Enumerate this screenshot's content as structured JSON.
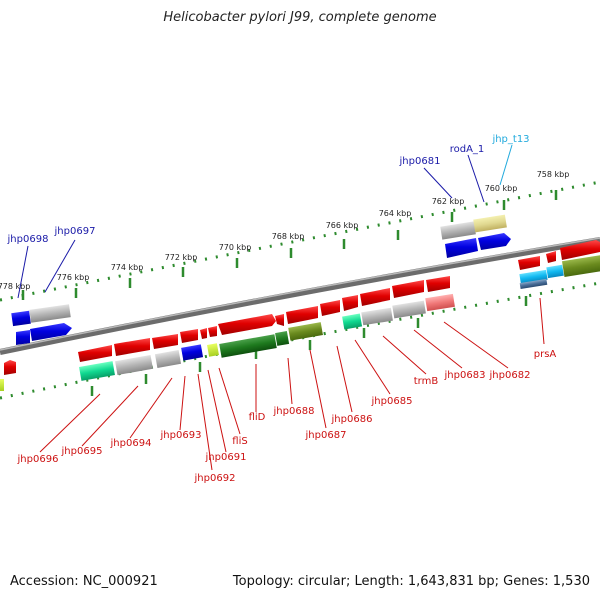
{
  "title": "Helicobacter pylori J99, complete genome",
  "footer": {
    "accession": "Accession: NC_000921",
    "topology": "Topology: circular; Length: 1,643,831 bp; Genes: 1,530"
  },
  "colors": {
    "backbone": "#7a7a7a",
    "tick": "#2e8b2e",
    "forward_label": "#1a1aa8",
    "trna_label": "#22aadd",
    "reverse_label": "#cc1111"
  },
  "scale_labels": [
    "778 kbp",
    "776 kbp",
    "774 kbp",
    "772 kbp",
    "770 kbp",
    "768 kbp",
    "766 kbp",
    "764 kbp",
    "762 kbp",
    "760 kbp",
    "758 kbp"
  ],
  "forward_genes": [
    "jhp0698",
    "jhp0697",
    "jhp0681",
    "rodA_1"
  ],
  "trna_genes": [
    "jhp_t13"
  ],
  "reverse_genes": [
    "jhp0696",
    "jhp0695",
    "jhp0694",
    "jhp0693",
    "jhp0692",
    "jhp0691",
    "fliS",
    "fliD",
    "jhp0688",
    "jhp0687",
    "jhp0686",
    "jhp0685",
    "trmB",
    "jhp0683",
    "jhp0682",
    "prsA"
  ]
}
